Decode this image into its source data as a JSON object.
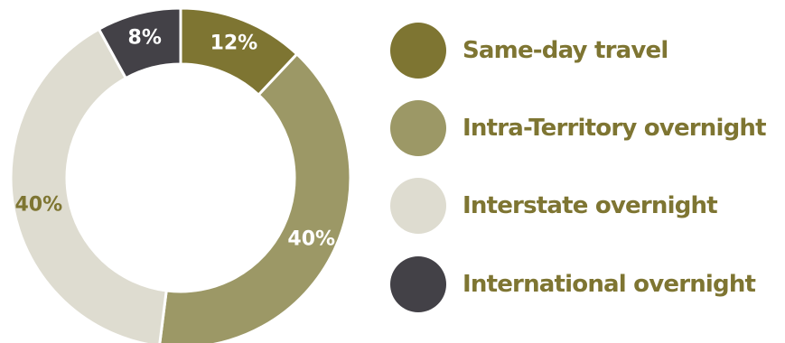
{
  "chart_data": {
    "type": "pie",
    "donut": true,
    "title": "",
    "categories": [
      "Same-day travel",
      "Intra-Territory overnight",
      "Interstate overnight",
      "International overnight"
    ],
    "values": [
      12,
      40,
      40,
      8
    ],
    "labels": [
      "12%",
      "40%",
      "40%",
      "8%"
    ],
    "colors": [
      "#7e7532",
      "#9c9866",
      "#dedcd0",
      "#434147"
    ],
    "label_colors": [
      "#ffffff",
      "#ffffff",
      "#7e7532",
      "#ffffff"
    ],
    "legend_text_color": "#7e7532",
    "legend": "right"
  }
}
